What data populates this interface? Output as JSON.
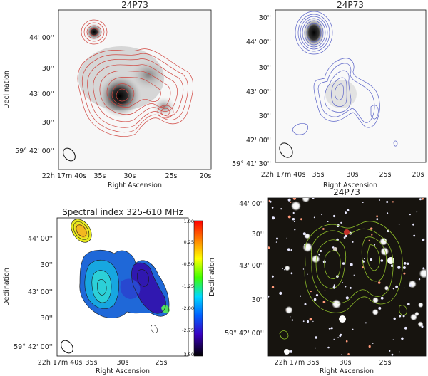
{
  "figure": {
    "panels": [
      {
        "id": "p1",
        "title": "24P73",
        "xlabel": "Right Ascension",
        "ylabel": "Declination",
        "yticks": [
          "44' 00''",
          "30''",
          "43' 00''",
          "30''",
          "59° 42' 00''"
        ],
        "xticks": [
          "22h 17m 40s",
          "35s",
          "30s",
          "25s",
          "20s"
        ]
      },
      {
        "id": "p2",
        "title": "24P73",
        "xlabel": "Right Ascension",
        "ylabel": "",
        "yticks": [
          "30''",
          "44' 00''",
          "30''",
          "43' 00''",
          "30''",
          "42' 00''",
          "59° 41' 30''"
        ],
        "xticks": [
          "22h 17m 40s",
          "35s",
          "30s",
          "25s",
          "20s"
        ]
      },
      {
        "id": "p3",
        "title": "Spectral index 325-610 MHz",
        "xlabel": "Right Ascension",
        "ylabel": "Declination",
        "yticks": [
          "44' 00''",
          "30''",
          "43' 00''",
          "30''",
          "59° 42' 00''"
        ],
        "xticks": [
          "22h 17m 40s",
          "35s",
          "30s",
          "25s"
        ],
        "colorbar_ticks": [
          "1.00",
          "0.25",
          "-0.50",
          "-1.25",
          "-2.00",
          "-2.75",
          "-3.50"
        ]
      },
      {
        "id": "p4",
        "title": "24P73",
        "xlabel": "Right Ascension",
        "ylabel": "Declination",
        "yticks": [
          "44' 00''",
          "30''",
          "43' 00''",
          "30''",
          "59° 42' 00''"
        ],
        "xticks": [
          "22h 17m 35s",
          "30s",
          "25s"
        ]
      }
    ],
    "colors": {
      "p1_contour": "#d0453f",
      "p2_contour": "#5a63c8",
      "p3_contour": "#1a1a1a",
      "p4_contour": "#8fbf2a",
      "optical_bg": "#17140f"
    }
  }
}
